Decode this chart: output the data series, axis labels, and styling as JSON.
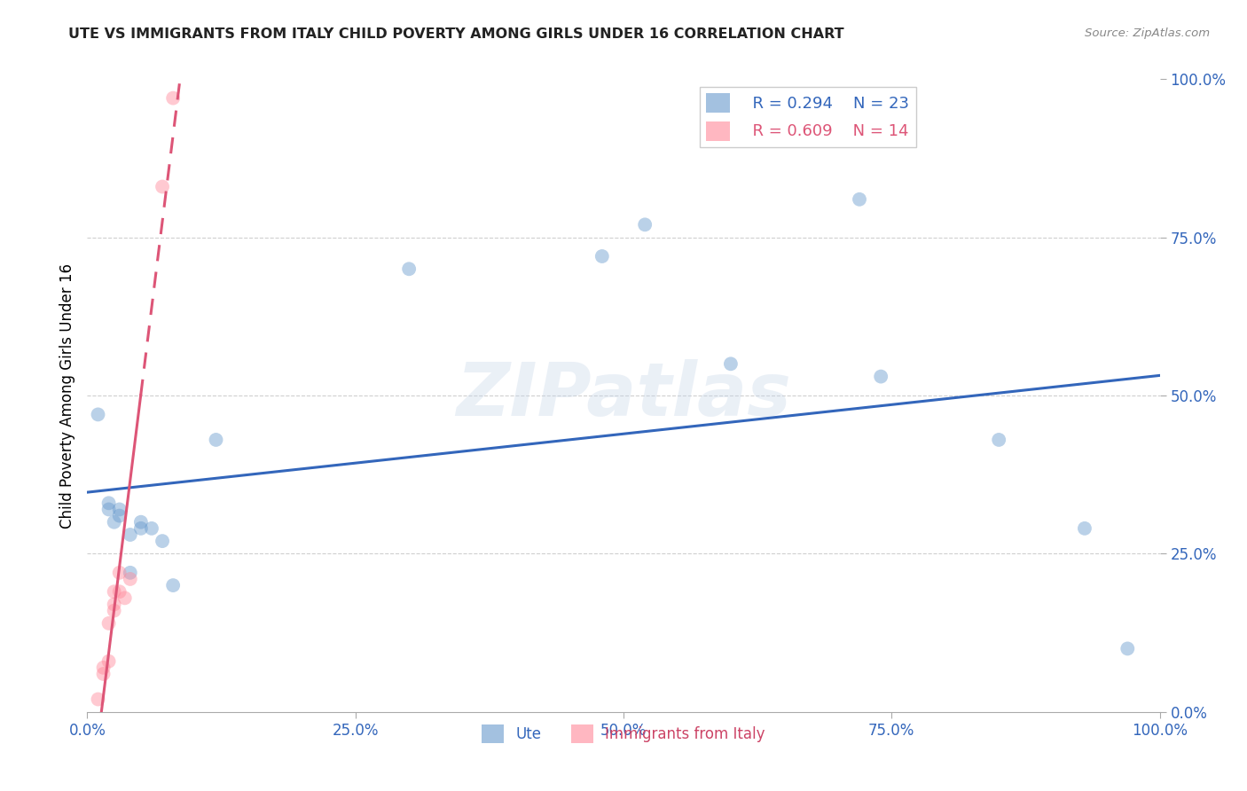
{
  "title": "UTE VS IMMIGRANTS FROM ITALY CHILD POVERTY AMONG GIRLS UNDER 16 CORRELATION CHART",
  "source": "Source: ZipAtlas.com",
  "ylabel": "Child Poverty Among Girls Under 16",
  "xlim": [
    0.0,
    1.0
  ],
  "ylim": [
    0.0,
    1.0
  ],
  "xticks": [
    0.0,
    0.25,
    0.5,
    0.75,
    1.0
  ],
  "xtick_labels": [
    "0.0%",
    "25.0%",
    "50.0%",
    "75.0%",
    "100.0%"
  ],
  "ytick_labels": [
    "0.0%",
    "25.0%",
    "50.0%",
    "75.0%",
    "100.0%"
  ],
  "yticks": [
    0.0,
    0.25,
    0.5,
    0.75,
    1.0
  ],
  "ute_color": "#6699CC",
  "italy_color": "#FF8899",
  "trendline_ute_color": "#3366BB",
  "trendline_italy_color": "#DD5577",
  "legend_R_ute": "R = 0.294",
  "legend_N_ute": "N = 23",
  "legend_R_italy": "R = 0.609",
  "legend_N_italy": "N = 14",
  "ute_x": [
    0.01,
    0.02,
    0.02,
    0.025,
    0.03,
    0.03,
    0.04,
    0.04,
    0.05,
    0.05,
    0.06,
    0.07,
    0.08,
    0.12,
    0.3,
    0.48,
    0.52,
    0.6,
    0.72,
    0.74,
    0.85,
    0.93,
    0.97
  ],
  "ute_y": [
    0.47,
    0.32,
    0.33,
    0.3,
    0.31,
    0.32,
    0.28,
    0.22,
    0.29,
    0.3,
    0.29,
    0.27,
    0.2,
    0.43,
    0.7,
    0.72,
    0.77,
    0.55,
    0.81,
    0.53,
    0.43,
    0.29,
    0.1
  ],
  "italy_x": [
    0.01,
    0.015,
    0.015,
    0.02,
    0.02,
    0.025,
    0.025,
    0.025,
    0.03,
    0.03,
    0.035,
    0.04,
    0.07,
    0.08
  ],
  "italy_y": [
    0.02,
    0.06,
    0.07,
    0.08,
    0.14,
    0.16,
    0.17,
    0.19,
    0.22,
    0.19,
    0.18,
    0.21,
    0.83,
    0.97
  ],
  "marker_size": 130,
  "marker_alpha": 0.45,
  "background_color": "#ffffff",
  "grid_color": "#bbbbbb",
  "watermark": "ZIPatlas"
}
